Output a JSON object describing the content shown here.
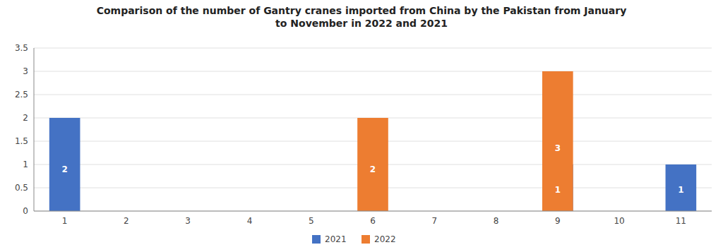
{
  "chart_data": {
    "type": "bar",
    "title": "Comparison of the number of Gantry cranes imported from China by the Pakistan from January\nto November in 2022 and 2021",
    "categories": [
      "1",
      "2",
      "3",
      "4",
      "5",
      "6",
      "7",
      "8",
      "9",
      "10",
      "11"
    ],
    "series": [
      {
        "name": "2021",
        "color": "#4472C4",
        "values": [
          2,
          0,
          0,
          0,
          0,
          0,
          0,
          0,
          1,
          0,
          1
        ]
      },
      {
        "name": "2022",
        "color": "#ED7D31",
        "values": [
          0,
          0,
          0,
          0,
          0,
          2,
          0,
          0,
          3,
          0,
          0
        ]
      }
    ],
    "ylim": [
      0,
      3.5
    ],
    "yticks": [
      0,
      0.5,
      1,
      1.5,
      2,
      2.5,
      3,
      3.5
    ],
    "grid": true,
    "legend": "bottom",
    "data_labels": true
  }
}
